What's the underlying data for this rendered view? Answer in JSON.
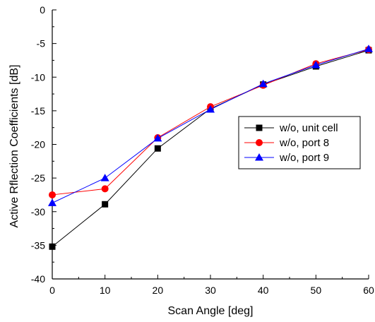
{
  "chart_data": {
    "type": "line",
    "xlabel": "Scan Angle [deg]",
    "ylabel": "Active Rflection Coefficients [dB]",
    "xlim": [
      0,
      60
    ],
    "ylim": [
      -40,
      0
    ],
    "xticks": [
      0,
      10,
      20,
      30,
      40,
      50,
      60
    ],
    "yticks": [
      0,
      -5,
      -10,
      -15,
      -20,
      -25,
      -30,
      -35,
      -40
    ],
    "grid": false,
    "legend_position": "right",
    "x": [
      0,
      10,
      20,
      30,
      40,
      50,
      60
    ],
    "series": [
      {
        "name": "w/o, unit cell",
        "marker": "square",
        "color": "#000000",
        "values": [
          -35.2,
          -28.9,
          -20.6,
          -14.7,
          -11.1,
          -8.4,
          -6.0
        ]
      },
      {
        "name": "w/o, port 8",
        "marker": "circle",
        "color": "#ff0000",
        "values": [
          -27.5,
          -26.6,
          -19.0,
          -14.4,
          -11.2,
          -8.0,
          -5.9
        ]
      },
      {
        "name": "w/o, port 9",
        "marker": "triangle",
        "color": "#0000ff",
        "values": [
          -28.7,
          -25.0,
          -19.1,
          -14.8,
          -11.0,
          -8.2,
          -5.8
        ]
      }
    ]
  }
}
